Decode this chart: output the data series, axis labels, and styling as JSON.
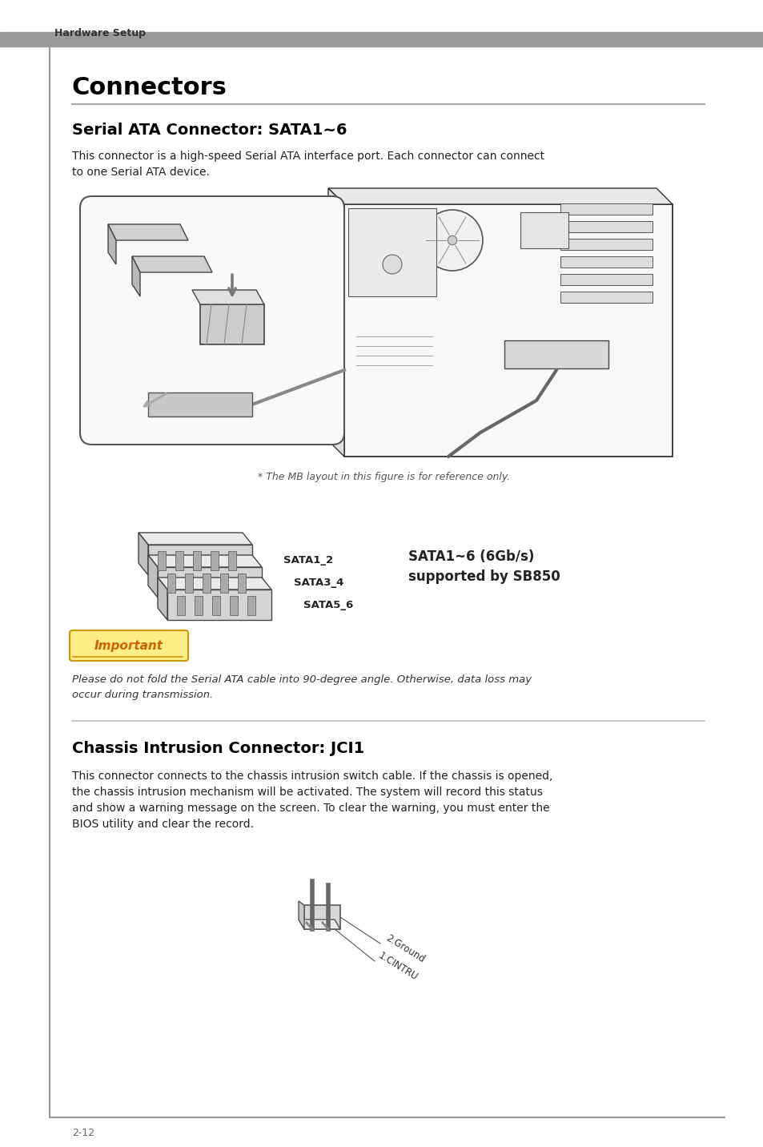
{
  "bg_color": "#ffffff",
  "header_bar_color": "#999999",
  "header_text": "Hardware Setup",
  "page_bg": "#ffffff",
  "left_border_color": "#999999",
  "bottom_border_color": "#999999",
  "page_number": "2-12",
  "title_connectors": "Connectors",
  "underline_color": "#aaaaaa",
  "section1_title": "Serial ATA Connector: SATA1~6",
  "section1_body": "This connector is a high-speed Serial ATA interface port. Each connector can connect\nto one Serial ATA device.",
  "caption_text": "* The MB layout in this figure is for reference only.",
  "sata_label1": "SATA5_6",
  "sata_label2": "SATA3_4",
  "sata_label3": "SATA1_2",
  "sata_right_line1": "SATA1~6 (6Gb/s)",
  "sata_right_line2": "supported by SB850",
  "important_label": "Important",
  "important_body": "Please do not fold the Serial ATA cable into 90-degree angle. Otherwise, data loss may\noccur during transmission.",
  "section2_title": "Chassis Intrusion Connector: JCI1",
  "section2_body": "This connector connects to the chassis intrusion switch cable. If the chassis is opened,\nthe chassis intrusion mechanism will be activated. The system will record this status\nand show a warning message on the screen. To clear the warning, you must enter the\nBIOS utility and clear the record.",
  "jci_label1": "2.Ground",
  "jci_label2": "1.CINTRU"
}
